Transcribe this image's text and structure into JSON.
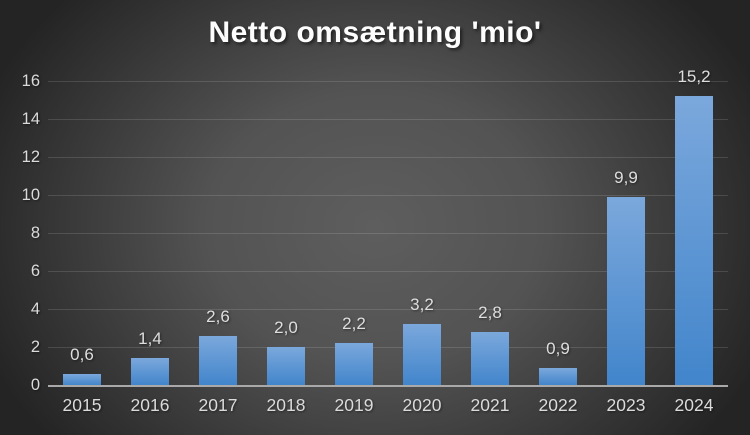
{
  "chart": {
    "title": "Netto omsætning 'mio'"
  },
  "chart_data": {
    "type": "bar",
    "title": "Netto omsætning 'mio'",
    "categories": [
      "2015",
      "2016",
      "2017",
      "2018",
      "2019",
      "2020",
      "2021",
      "2022",
      "2023",
      "2024"
    ],
    "values": [
      0.6,
      1.4,
      2.6,
      2.0,
      2.2,
      3.2,
      2.8,
      0.9,
      9.9,
      15.2
    ],
    "value_labels": [
      "0,6",
      "1,4",
      "2,6",
      "2,0",
      "2,2",
      "3,2",
      "2,8",
      "0,9",
      "9,9",
      "15,2"
    ],
    "xlabel": "",
    "ylabel": "",
    "ylim": [
      0,
      16
    ],
    "ytick_interval": 2,
    "yticks": [
      "0",
      "2",
      "4",
      "6",
      "8",
      "10",
      "12",
      "14",
      "16"
    ],
    "grid": "horizontal",
    "legend": "none",
    "decimal_separator": ",",
    "colors": {
      "bar_gradient_top": "#7ba8dc",
      "bar_gradient_bottom": "#4285cb",
      "background_center": "#5e5e5e",
      "background_edge": "#242424",
      "gridline": "rgba(255,255,255,0.13)",
      "axis_line": "#a9a9a9",
      "label_text": "#dbdbdb",
      "title_text": "#fdfdfd"
    }
  }
}
